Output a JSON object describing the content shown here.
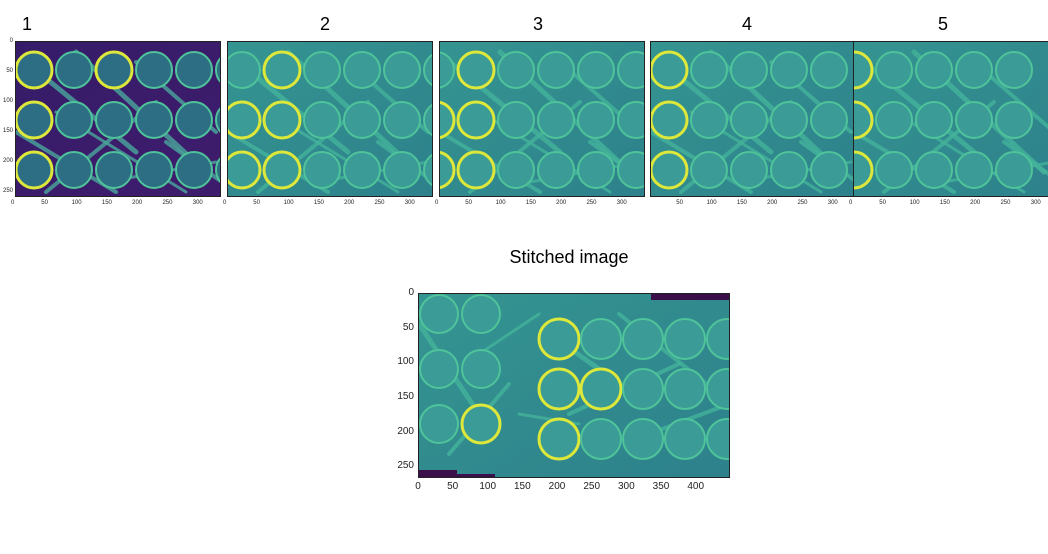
{
  "panels": [
    {
      "label": "1",
      "xticks": [
        "0",
        "50",
        "100",
        "150",
        "200",
        "250",
        "300"
      ],
      "yticks": [
        "0",
        "50",
        "100",
        "150",
        "200",
        "250"
      ],
      "variant": "dark"
    },
    {
      "label": "2",
      "xticks": [
        "0",
        "50",
        "100",
        "150",
        "200",
        "250",
        "300"
      ],
      "yticks": [],
      "variant": "teal"
    },
    {
      "label": "3",
      "xticks": [
        "0",
        "50",
        "100",
        "150",
        "200",
        "250",
        "300"
      ],
      "yticks": [],
      "variant": "teal"
    },
    {
      "label": "4",
      "xticks": [
        "50",
        "100",
        "150",
        "200",
        "250",
        "300"
      ],
      "yticks": [],
      "variant": "teal"
    },
    {
      "label": "5",
      "xticks": [
        "0",
        "50",
        "100",
        "150",
        "200",
        "250",
        "300"
      ],
      "yticks": [],
      "variant": "teal"
    }
  ],
  "stitched": {
    "title": "Stitched image",
    "xticks": [
      "0",
      "50",
      "100",
      "150",
      "200",
      "250",
      "300",
      "350",
      "400"
    ],
    "yticks": [
      "0",
      "50",
      "100",
      "150",
      "200",
      "250"
    ]
  },
  "colors": {
    "dark_bg": "#3b1f6e",
    "teal_bg": "#2f8a8c",
    "ring": "#4fc39a",
    "ring_bright": "#dde83a",
    "pad": "#3a0f4a"
  }
}
